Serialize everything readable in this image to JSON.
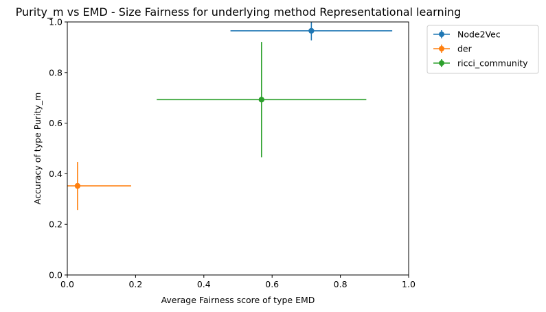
{
  "chart_data": {
    "type": "scatter",
    "title": "Purity_m vs EMD - Size Fairness for underlying method Representational learning",
    "xlabel": "Average Fairness score of type EMD",
    "ylabel": "Accuracy of type Purity_m",
    "xlim": [
      0.0,
      1.0
    ],
    "ylim": [
      0.0,
      1.0
    ],
    "xticks": [
      "0.0",
      "0.2",
      "0.4",
      "0.6",
      "0.8",
      "1.0"
    ],
    "yticks": [
      "0.0",
      "0.2",
      "0.4",
      "0.6",
      "0.8",
      "1.0"
    ],
    "grid": false,
    "legend_position": "outside-top-right",
    "series": [
      {
        "name": "Node2Vec",
        "color": "#1f77b4",
        "x": 0.715,
        "y": 0.965,
        "xerr": 0.237,
        "yerr": 0.038
      },
      {
        "name": "der",
        "color": "#ff7f0e",
        "x": 0.03,
        "y": 0.352,
        "xerr": 0.157,
        "yerr": 0.095
      },
      {
        "name": "ricci_community",
        "color": "#2ca02c",
        "x": 0.569,
        "y": 0.693,
        "xerr": 0.307,
        "yerr": 0.228
      }
    ]
  }
}
